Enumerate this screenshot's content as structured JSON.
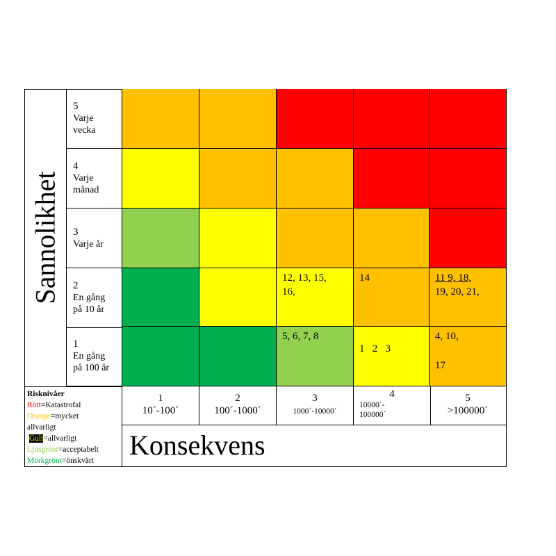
{
  "y_axis_label": "Sannolikhet",
  "x_axis_label": "Konsekvens",
  "colors": {
    "red": "#ff0000",
    "orange": "#ffc000",
    "yellow": "#ffff00",
    "light_green": "#92d050",
    "dark_green": "#00b050"
  },
  "rows": [
    {
      "num": "5",
      "label_line1": "Varje",
      "label_line2": "vecka"
    },
    {
      "num": "4",
      "label_line1": "Varje",
      "label_line2": "månad"
    },
    {
      "num": "3",
      "label_line1": "Varje år",
      "label_line2": ""
    },
    {
      "num": "2",
      "label_line1": "En gång",
      "label_line2": "på 10 år"
    },
    {
      "num": "1",
      "label_line1": "En gång",
      "label_line2": "på 100 år"
    }
  ],
  "columns": [
    {
      "num": "1",
      "range": "10´-100´"
    },
    {
      "num": "2",
      "range": "100´-1000´"
    },
    {
      "num": "3",
      "range": "1000´-10000´"
    },
    {
      "num": "4",
      "range_line1": "10000´-",
      "range_line2": "100000´"
    },
    {
      "num": "5",
      "range": ">100000´"
    }
  ],
  "matrix": [
    [
      "orange",
      "orange",
      "red",
      "red",
      "red"
    ],
    [
      "yellow",
      "orange",
      "orange",
      "red",
      "red"
    ],
    [
      "light_green",
      "yellow",
      "orange",
      "orange",
      "red"
    ],
    [
      "dark_green",
      "yellow",
      "yellow",
      "orange",
      "orange"
    ],
    [
      "dark_green",
      "dark_green",
      "light_green",
      "yellow",
      "orange"
    ]
  ],
  "cell_text": {
    "r2c3_line1": "12, 13, 15,",
    "r2c3_line2": "16,",
    "r2c4": "14",
    "r2c5_line1": "11 9, 18,",
    "r2c5_line2": "19, 20, 21,",
    "r1c3": "5, 6, 7, 8",
    "r1c4": "1   2   3",
    "r1c5_line1": "4, 10,",
    "r1c5_line2": "17"
  },
  "legend": {
    "title": "Risknivåer",
    "red_word": "Rött",
    "red_desc": "=Katastrofal",
    "orange_word": "Orange",
    "orange_desc": "=mycket",
    "orange_desc2": "allvarligt",
    "yellow_word": "Gult",
    "yellow_desc": "=allvarligt",
    "lgreen_word": "Ljusgrönt",
    "lgreen_desc": "=acceptabelt",
    "dgreen_word": "Mörkgrönt",
    "dgreen_desc": "=önskvärt"
  }
}
